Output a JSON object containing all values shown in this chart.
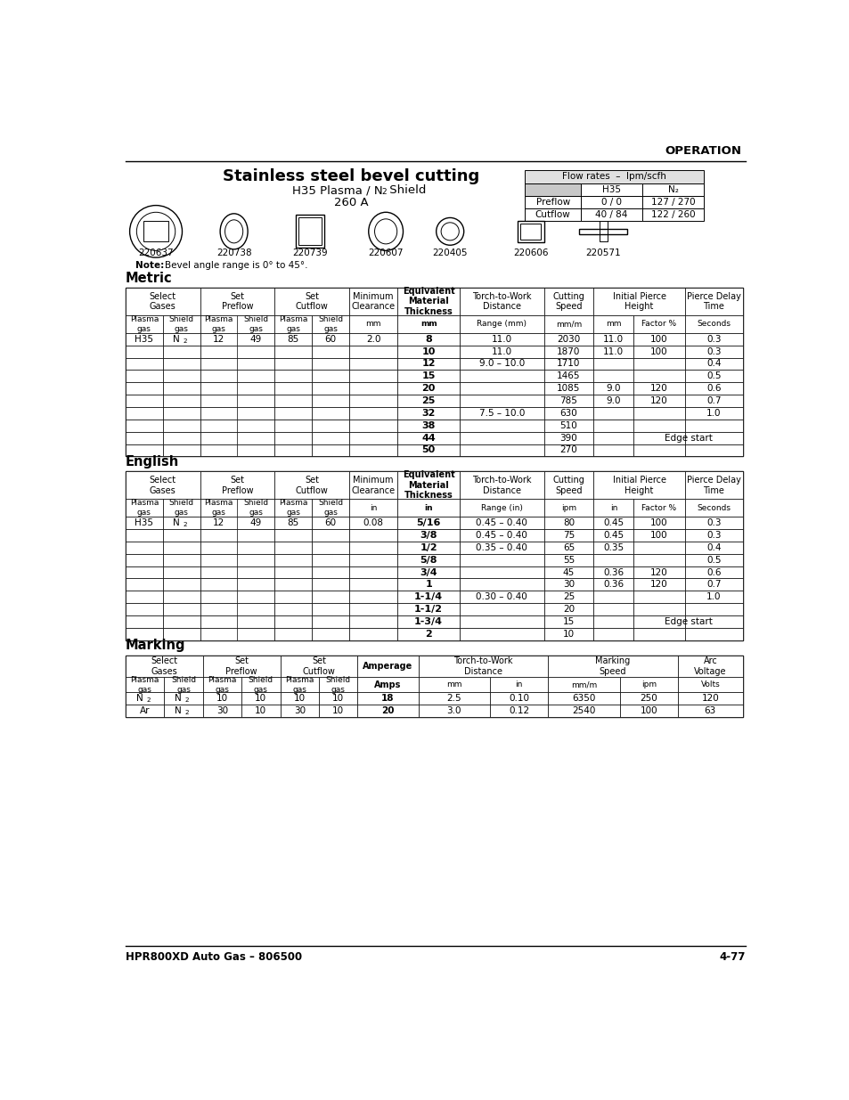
{
  "title": "Stainless steel bevel cutting",
  "subtitle1": "H35 Plasma / N",
  "subtitle1_sub": "2",
  "subtitle1_rest": " Shield",
  "subtitle2": "260 A",
  "operation_header": "OPERATION",
  "part_numbers": [
    "220637",
    "220738",
    "220739",
    "220607",
    "220405",
    "220606",
    "220571"
  ],
  "note_text": "Bevel angle range is 0° to 45°.",
  "flow_rates_title": "Flow rates  –  lpm/scfh",
  "flow_h35": "H35",
  "flow_n2": "N₂",
  "flow_preflow_label": "Preflow",
  "flow_cutflow_label": "Cutflow",
  "flow_preflow_h35": "0 / 0",
  "flow_preflow_n2": "127 / 270",
  "flow_cutflow_h35": "40 / 84",
  "flow_cutflow_n2": "122 / 260",
  "metric_label": "Metric",
  "english_label": "English",
  "marking_label": "Marking",
  "footer_left": "HPR800XD Auto Gas – 806500",
  "footer_right": "4-77",
  "metric_data": [
    [
      "H35",
      "N2",
      "12",
      "49",
      "85",
      "60",
      "2.0",
      "8",
      "11.0",
      "2030",
      "11.0",
      "100",
      "0.3"
    ],
    [
      "",
      "",
      "",
      "",
      "",
      "",
      "",
      "10",
      "11.0",
      "1870",
      "11.0",
      "100",
      "0.3"
    ],
    [
      "",
      "",
      "",
      "",
      "",
      "",
      "",
      "12",
      "9.0 – 10.0",
      "1710",
      "",
      "",
      "0.4"
    ],
    [
      "",
      "",
      "",
      "",
      "",
      "",
      "",
      "15",
      "",
      "1465",
      "",
      "",
      "0.5"
    ],
    [
      "",
      "",
      "",
      "",
      "",
      "",
      "",
      "20",
      "",
      "1085",
      "9.0",
      "120",
      "0.6"
    ],
    [
      "",
      "",
      "",
      "",
      "",
      "",
      "",
      "25",
      "",
      "785",
      "9.0",
      "120",
      "0.7"
    ],
    [
      "",
      "",
      "",
      "",
      "",
      "",
      "",
      "32",
      "7.5 – 10.0",
      "630",
      "",
      "",
      "1.0"
    ],
    [
      "",
      "",
      "",
      "",
      "",
      "",
      "",
      "38",
      "",
      "510",
      "",
      "",
      ""
    ],
    [
      "",
      "",
      "",
      "",
      "",
      "",
      "",
      "44",
      "",
      "390",
      "",
      "Edge start",
      ""
    ],
    [
      "",
      "",
      "",
      "",
      "",
      "",
      "",
      "50",
      "",
      "270",
      "",
      "",
      ""
    ]
  ],
  "english_data": [
    [
      "H35",
      "N2",
      "12",
      "49",
      "85",
      "60",
      "0.08",
      "5/16",
      "0.45 – 0.40",
      "80",
      "0.45",
      "100",
      "0.3"
    ],
    [
      "",
      "",
      "",
      "",
      "",
      "",
      "",
      "3/8",
      "0.45 – 0.40",
      "75",
      "0.45",
      "100",
      "0.3"
    ],
    [
      "",
      "",
      "",
      "",
      "",
      "",
      "",
      "1/2",
      "0.35 – 0.40",
      "65",
      "0.35",
      "",
      "0.4"
    ],
    [
      "",
      "",
      "",
      "",
      "",
      "",
      "",
      "5/8",
      "",
      "55",
      "",
      "",
      "0.5"
    ],
    [
      "",
      "",
      "",
      "",
      "",
      "",
      "",
      "3/4",
      "",
      "45",
      "0.36",
      "120",
      "0.6"
    ],
    [
      "",
      "",
      "",
      "",
      "",
      "",
      "",
      "1",
      "",
      "30",
      "0.36",
      "120",
      "0.7"
    ],
    [
      "",
      "",
      "",
      "",
      "",
      "",
      "",
      "1-1/4",
      "0.30 – 0.40",
      "25",
      "",
      "",
      "1.0"
    ],
    [
      "",
      "",
      "",
      "",
      "",
      "",
      "",
      "1-1/2",
      "",
      "20",
      "",
      "",
      ""
    ],
    [
      "",
      "",
      "",
      "",
      "",
      "",
      "",
      "1-3/4",
      "",
      "15",
      "",
      "Edge start",
      ""
    ],
    [
      "",
      "",
      "",
      "",
      "",
      "",
      "",
      "2",
      "",
      "10",
      "",
      "",
      ""
    ]
  ],
  "marking_data": [
    [
      "N2",
      "N2",
      "10",
      "10",
      "10",
      "10",
      "18",
      "2.5",
      "0.10",
      "6350",
      "250",
      "120"
    ],
    [
      "Ar",
      "N2",
      "30",
      "10",
      "30",
      "10",
      "20",
      "3.0",
      "0.12",
      "2540",
      "100",
      "63"
    ]
  ],
  "bg_color": "#ffffff"
}
